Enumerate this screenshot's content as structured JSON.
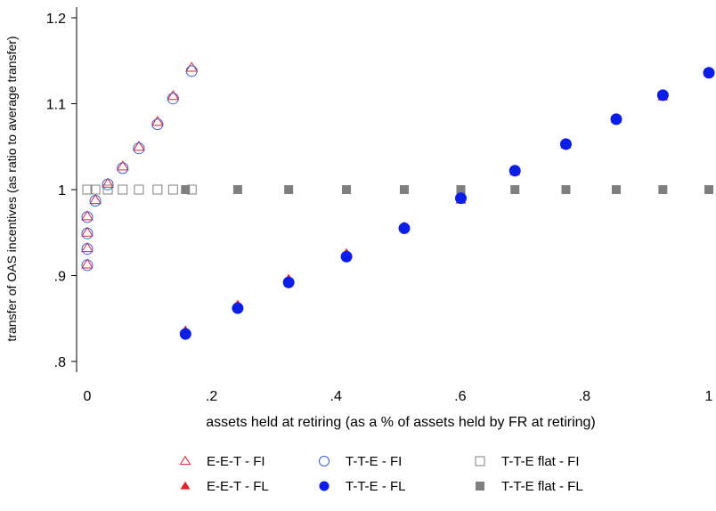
{
  "chart_data": {
    "type": "scatter",
    "xlabel": "assets held at retiring (as a % of assets held by FR at retiring)",
    "ylabel": "transfer of OAS incentives (as ratio to average transfer)",
    "xlim": [
      0,
      1
    ],
    "ylim": [
      0.8,
      1.2
    ],
    "x_ticks": [
      0,
      0.2,
      0.4,
      0.6,
      0.8,
      1
    ],
    "x_tick_labels": [
      "0",
      ".2",
      ".4",
      ".6",
      ".8",
      "1"
    ],
    "y_ticks": [
      0.8,
      0.9,
      1.0,
      1.1,
      1.2
    ],
    "y_tick_labels": [
      ".8",
      ".9",
      "1",
      "1.1",
      "1.2"
    ],
    "grid": false,
    "legend_position": "bottom",
    "series": [
      {
        "name": "E-E-T - FI",
        "marker": "triangle-open",
        "color": "#e8202a",
        "x": [
          0,
          0,
          0,
          0,
          0.013,
          0.033,
          0.057,
          0.083,
          0.113,
          0.138,
          0.168
        ],
        "y": [
          0.913,
          0.932,
          0.95,
          0.969,
          0.988,
          1.007,
          1.027,
          1.05,
          1.079,
          1.109,
          1.142
        ]
      },
      {
        "name": "T-T-E - FI",
        "marker": "circle-open",
        "color": "#3b5bdb",
        "x": [
          0,
          0,
          0,
          0,
          0.013,
          0.033,
          0.057,
          0.083,
          0.113,
          0.138,
          0.168
        ],
        "y": [
          0.912,
          0.931,
          0.949,
          0.968,
          0.987,
          1.006,
          1.025,
          1.048,
          1.076,
          1.106,
          1.138
        ]
      },
      {
        "name": "T-T-E flat - FI",
        "marker": "square-open",
        "color": "#7f7f7f",
        "x": [
          0,
          0.013,
          0.033,
          0.057,
          0.083,
          0.113,
          0.138,
          0.168
        ],
        "y": [
          1,
          1,
          1,
          1,
          1,
          1,
          1,
          1
        ]
      },
      {
        "name": "E-E-T - FL",
        "marker": "triangle-filled",
        "color": "#e8202a",
        "x": [
          0.158,
          0.242,
          0.324,
          0.417,
          0.51,
          0.601,
          0.688,
          0.77,
          0.851,
          0.926,
          1.0
        ],
        "y": [
          0.836,
          0.866,
          0.896,
          0.926,
          0.957,
          0.988,
          1.021,
          1.052,
          1.082,
          1.108,
          1.136
        ]
      },
      {
        "name": "T-T-E - FL",
        "marker": "circle-filled",
        "color": "#0a1ee8",
        "x": [
          0.158,
          0.242,
          0.324,
          0.417,
          0.51,
          0.601,
          0.688,
          0.77,
          0.851,
          0.926,
          1.0
        ],
        "y": [
          0.832,
          0.862,
          0.892,
          0.922,
          0.955,
          0.99,
          1.022,
          1.053,
          1.082,
          1.11,
          1.136
        ]
      },
      {
        "name": "T-T-E flat - FL",
        "marker": "square-filled",
        "color": "#7f7f7f",
        "x": [
          0.158,
          0.242,
          0.324,
          0.417,
          0.51,
          0.601,
          0.688,
          0.77,
          0.851,
          0.926,
          1.0
        ],
        "y": [
          1,
          1,
          1,
          1,
          1,
          1,
          1,
          1,
          1,
          1,
          1
        ]
      }
    ]
  }
}
